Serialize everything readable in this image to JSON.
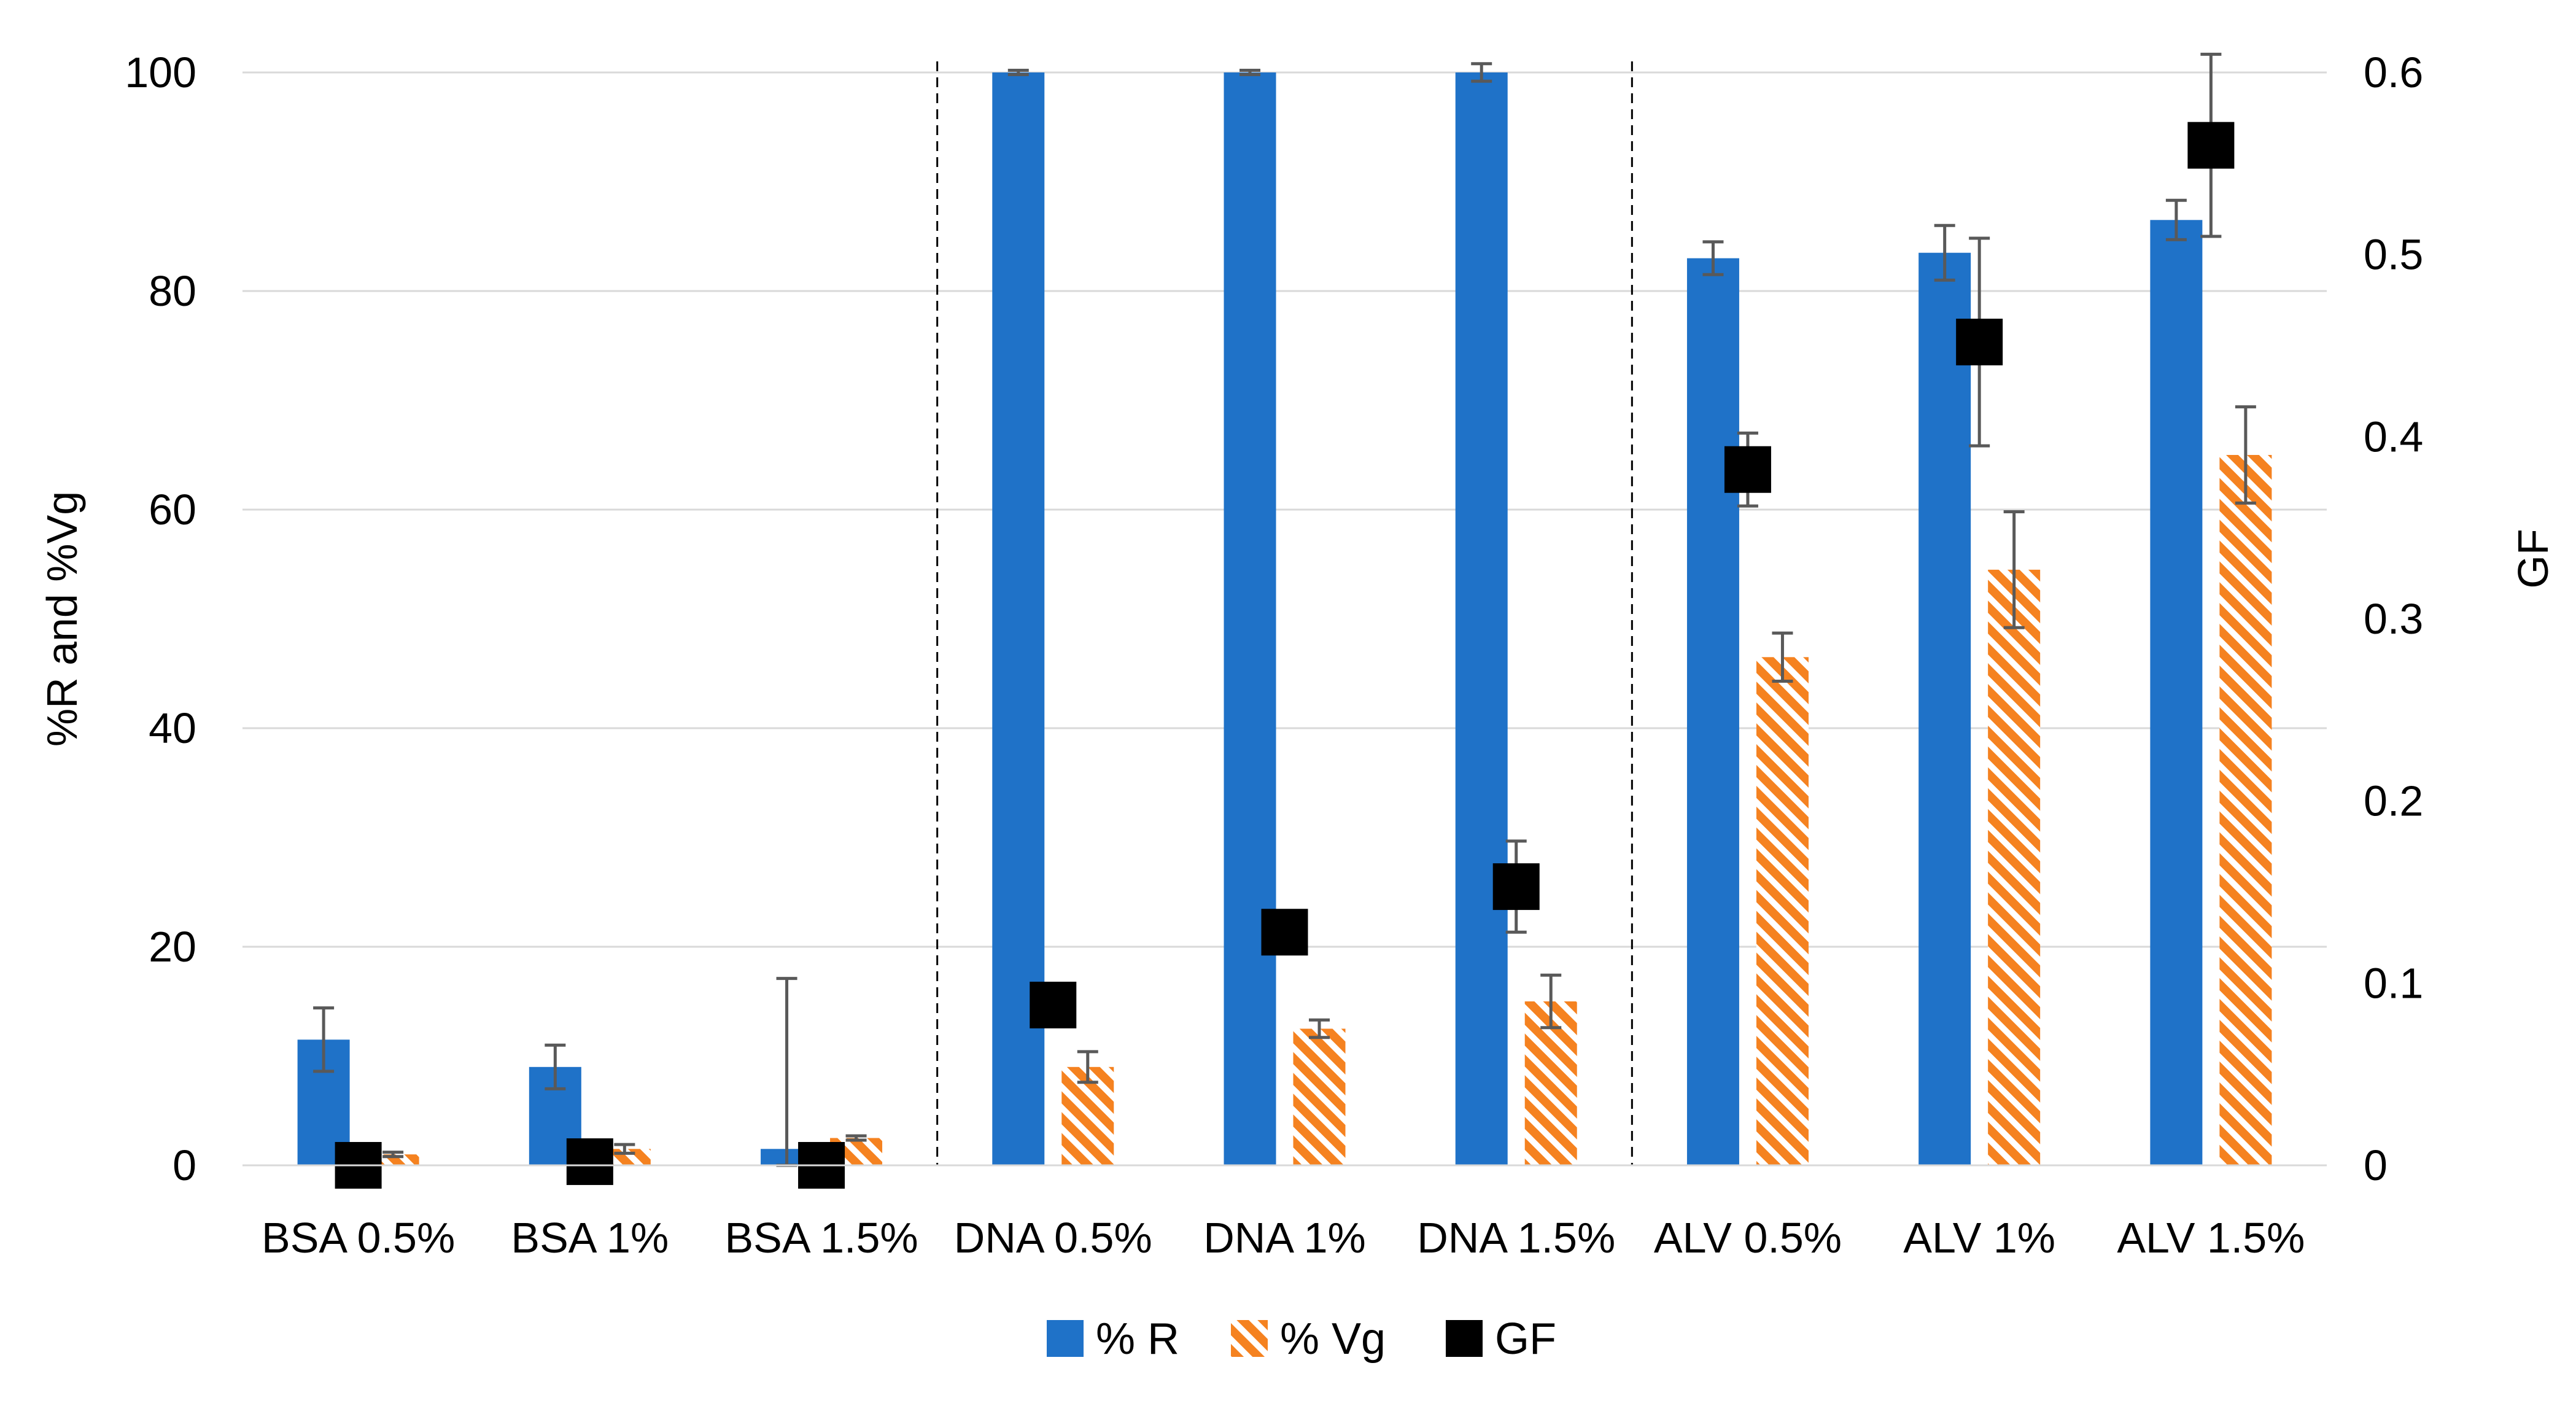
{
  "chart_data": {
    "type": "bar",
    "categories": [
      "BSA 0.5%",
      "BSA 1%",
      "BSA 1.5%",
      "DNA 0.5%",
      "DNA 1%",
      "DNA 1.5%",
      "ALV 0.5%",
      "ALV 1%",
      "ALV 1.5%"
    ],
    "series": [
      {
        "name": "% R",
        "kind": "bar",
        "axis": "left",
        "color": "#1f72c8",
        "values": [
          11.5,
          9.0,
          1.5,
          100,
          100,
          100,
          83.0,
          83.5,
          86.5
        ],
        "errors": [
          2.9,
          2.0,
          15.6,
          0.2,
          0.2,
          0.8,
          1.5,
          2.5,
          1.8
        ]
      },
      {
        "name": "% Vg",
        "kind": "bar",
        "axis": "left",
        "pattern": "diagonal-hatch",
        "color": "#f58220",
        "values": [
          1.0,
          1.5,
          2.5,
          9.0,
          12.5,
          15.0,
          46.5,
          54.5,
          65.0
        ],
        "errors": [
          0.2,
          0.4,
          0.2,
          1.4,
          0.8,
          2.4,
          2.2,
          5.3,
          4.4
        ]
      },
      {
        "name": "GF",
        "kind": "marker",
        "axis": "right",
        "color": "#000000",
        "values": [
          0.0,
          0.002,
          0.0,
          0.088,
          0.128,
          0.153,
          0.382,
          0.452,
          0.56
        ],
        "errors": [
          0.0,
          0.0,
          0.0,
          0.0,
          0.0,
          0.025,
          0.02,
          0.057,
          0.05
        ]
      }
    ],
    "ylabel": "%R and %Vg",
    "y2label": "GF",
    "ylim": [
      0,
      100
    ],
    "y2lim": [
      0,
      0.6
    ],
    "yticks": [
      "0",
      "20",
      "40",
      "60",
      "80",
      "100"
    ],
    "y2ticks": [
      "0",
      "0.1",
      "0.2",
      "0.3",
      "0.4",
      "0.5",
      "0.6"
    ],
    "grid": true,
    "group_separators_after": [
      "BSA 1.5%",
      "DNA 1.5%"
    ],
    "legend_position": "bottom"
  }
}
